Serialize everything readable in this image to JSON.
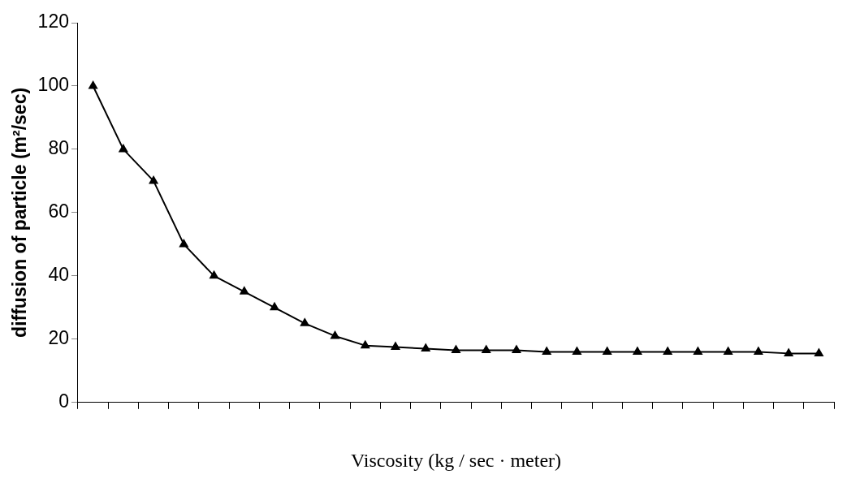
{
  "chart_data": {
    "type": "line",
    "xlabel": "Viscosity (kg / sec · meter)",
    "ylabel": "diffusion of particle (m²/sec)",
    "categories": [
      null,
      null,
      null,
      null,
      null,
      null,
      null,
      null,
      null,
      null,
      null,
      null,
      null,
      null,
      null,
      null,
      null,
      null,
      null,
      null,
      null,
      null,
      null,
      null,
      null
    ],
    "series": [
      {
        "color": "#000000",
        "values": [
          100,
          80,
          70,
          50,
          40,
          35,
          30,
          25,
          21,
          18,
          17.5,
          17,
          16.5,
          16.5,
          16.5,
          16,
          16,
          16,
          16,
          16,
          16,
          16,
          16,
          15.5,
          15.5
        ]
      }
    ],
    "ylim": [
      0,
      120
    ],
    "yticks": [
      0,
      20,
      40,
      60,
      80,
      100,
      120
    ],
    "grid": false,
    "legend": false,
    "marker": "triangle",
    "line_style": "solid"
  }
}
